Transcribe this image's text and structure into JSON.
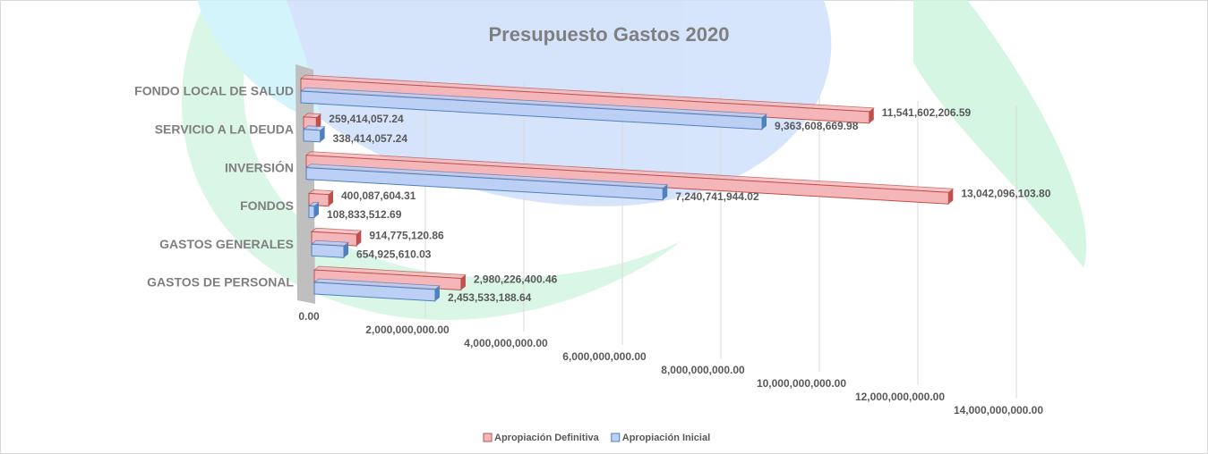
{
  "chart_data": {
    "type": "bar3d",
    "orientation": "horizontal",
    "title": "Presupuesto Gastos 2020",
    "categories": [
      "FONDO LOCAL DE SALUD",
      "SERVICIO A LA DEUDA",
      "INVERSIÓN",
      "FONDOS",
      "GASTOS GENERALES",
      "GASTOS DE PERSONAL"
    ],
    "series": [
      {
        "name": "Apropiación Definitiva",
        "color": "#f4b6b8",
        "edge": "#c0504d",
        "values": [
          11541602206.59,
          259414057.24,
          13042096103.8,
          400087604.31,
          914775120.86,
          2980226400.46
        ],
        "value_labels": [
          "11,541,602,206.59",
          "259,414,057.24",
          "13,042,096,103.80",
          "400,087,604.31",
          "914,775,120.86",
          "2,980,226,400.46"
        ]
      },
      {
        "name": "Apropiación Inicial",
        "color": "#bcd0f5",
        "edge": "#4f81bd",
        "values": [
          9363608669.98,
          338414057.24,
          7240741944.02,
          108833512.69,
          654925610.03,
          2453533188.64
        ],
        "value_labels": [
          "9,363,608,669.98",
          "338,414,057.24",
          "7,240,741,944.02",
          "108,833,512.69",
          "654,925,610.03",
          "2,453,533,188.64"
        ]
      }
    ],
    "xlim": [
      0,
      14000000000
    ],
    "xticks": [
      {
        "value": 0,
        "label": "0.00"
      },
      {
        "value": 2000000000,
        "label": "2,000,000,000.00"
      },
      {
        "value": 4000000000,
        "label": "4,000,000,000.00"
      },
      {
        "value": 6000000000,
        "label": "6,000,000,000.00"
      },
      {
        "value": 8000000000,
        "label": "8,000,000,000.00"
      },
      {
        "value": 10000000000,
        "label": "10,000,000,000.00"
      },
      {
        "value": 12000000000,
        "label": "12,000,000,000.00"
      },
      {
        "value": 14000000000,
        "label": "14,000,000,000.00"
      }
    ],
    "grid": true,
    "legend": "bottom"
  }
}
